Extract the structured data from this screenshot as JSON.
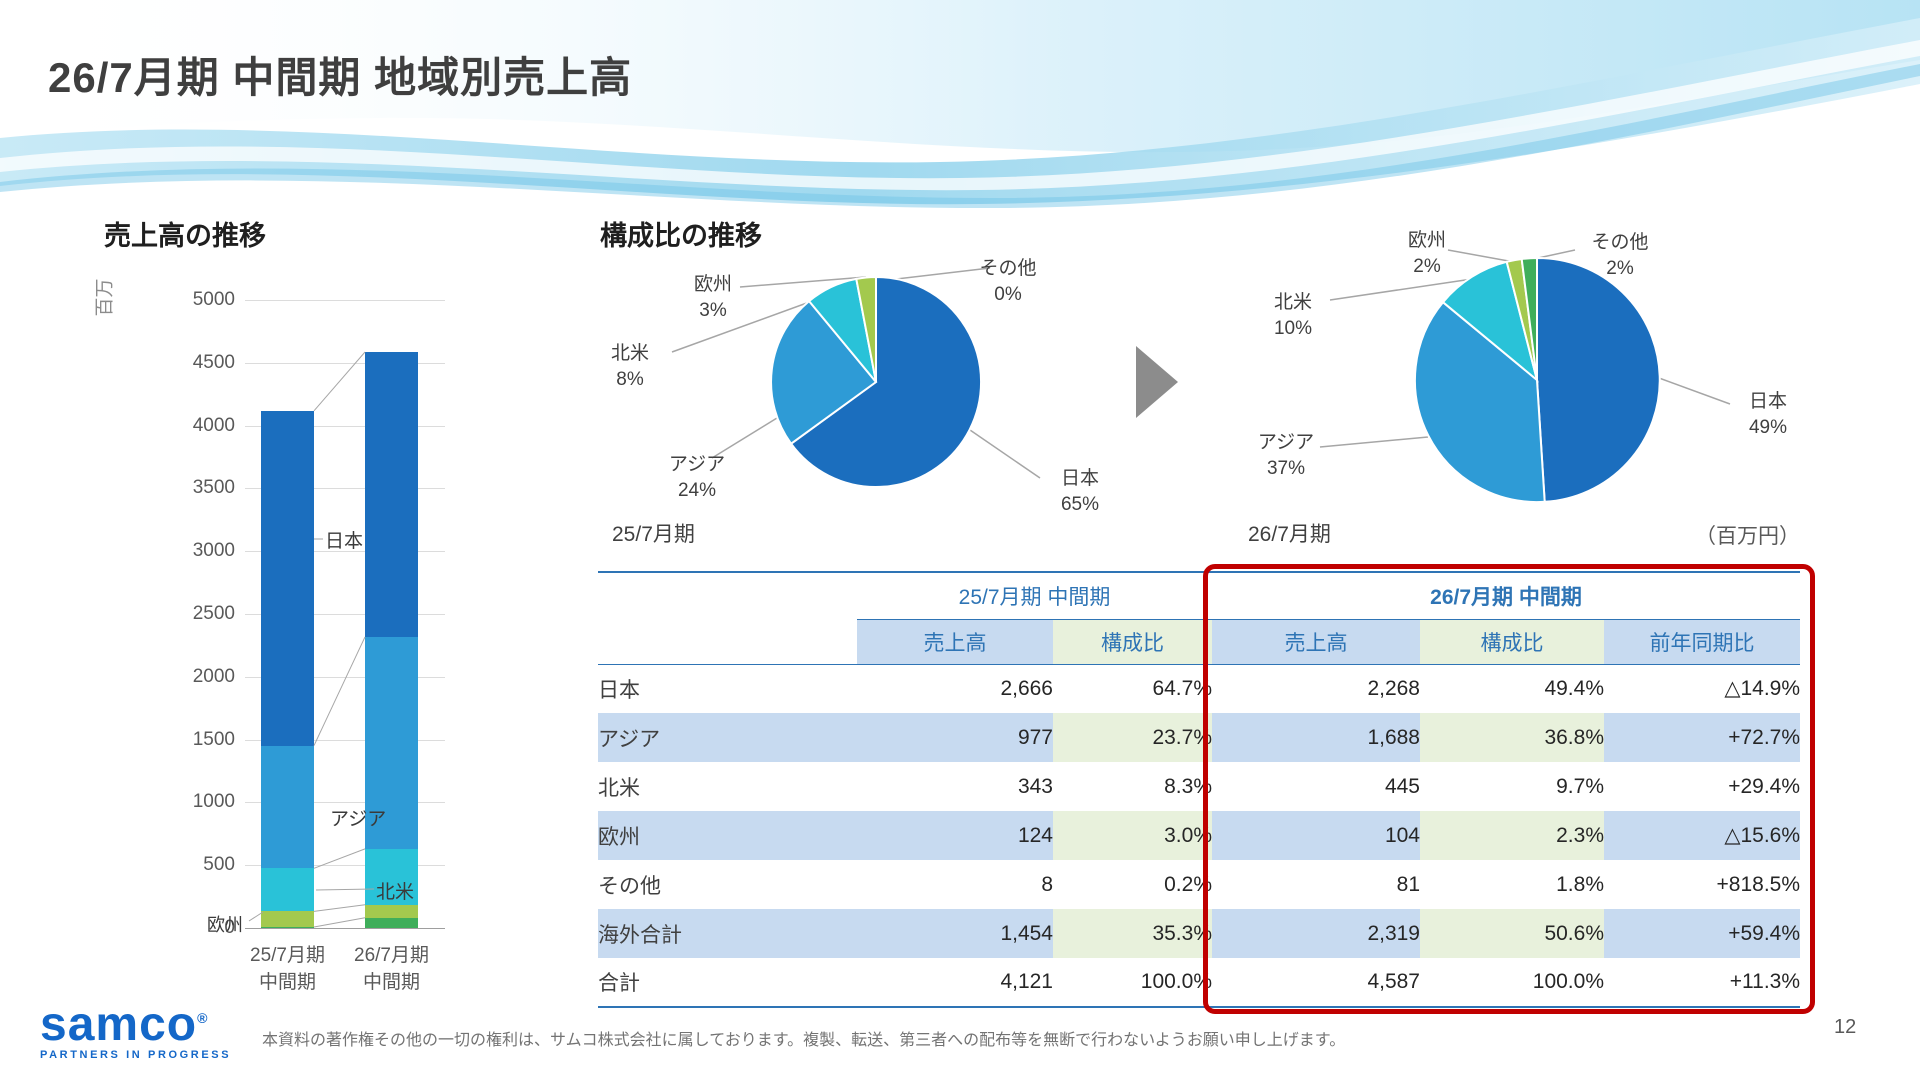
{
  "slide": {
    "title": "26/7月期 中間期 地域別売上高",
    "page_number": "12",
    "footer": "本資料の著作権その他の一切の権利は、サムコ株式会社に属しております。複製、転送、第三者への配布等を無断で行わないようお願い申し上げます。"
  },
  "logo": {
    "name": "samco",
    "reg": "®",
    "tagline": "PARTNERS IN PROGRESS"
  },
  "sections": {
    "pie_title": "構成比の推移",
    "unit_note": "（百万円）"
  },
  "colors": {
    "japan": "#1B6EBE",
    "asia": "#2E9BD6",
    "namerica": "#29C2D8",
    "europe": "#A3C94E",
    "other": "#3FAE5A",
    "header_blue": "#2E74B5",
    "stripe_blue": "#C7DAF0",
    "stripe_green": "#E8F1DC",
    "highlight_red": "#C00000"
  },
  "chart_data": [
    {
      "id": "sales_bar",
      "type": "bar",
      "stacked": true,
      "title": "売上高の推移",
      "ylabel": "百万",
      "ylim": [
        0,
        5000
      ],
      "ytick_step": 500,
      "categories": [
        "25/7月期 中間期",
        "26/7月期 中間期"
      ],
      "categories_lines": [
        [
          "25/7月期",
          "中間期"
        ],
        [
          "26/7月期",
          "中間期"
        ]
      ],
      "series": [
        {
          "name": "その他",
          "key": "other",
          "values": [
            8,
            81
          ]
        },
        {
          "name": "欧州",
          "key": "europe",
          "values": [
            124,
            104
          ]
        },
        {
          "name": "北米",
          "key": "namerica",
          "values": [
            343,
            445
          ]
        },
        {
          "name": "アジア",
          "key": "asia",
          "values": [
            977,
            1688
          ]
        },
        {
          "name": "日本",
          "key": "japan",
          "values": [
            2666,
            2268
          ]
        }
      ]
    },
    {
      "id": "pie_25",
      "type": "pie",
      "caption": "25/7月期",
      "slices": [
        {
          "name": "日本",
          "key": "japan",
          "pct": 65,
          "pct_label": "65%"
        },
        {
          "name": "アジア",
          "key": "asia",
          "pct": 24,
          "pct_label": "24%"
        },
        {
          "name": "北米",
          "key": "namerica",
          "pct": 8,
          "pct_label": "8%"
        },
        {
          "name": "欧州",
          "key": "europe",
          "pct": 3,
          "pct_label": "3%"
        },
        {
          "name": "その他",
          "key": "other",
          "pct": 0,
          "pct_label": "0%"
        }
      ]
    },
    {
      "id": "pie_26",
      "type": "pie",
      "caption": "26/7月期",
      "slices": [
        {
          "name": "日本",
          "key": "japan",
          "pct": 49,
          "pct_label": "49%"
        },
        {
          "name": "アジア",
          "key": "asia",
          "pct": 37,
          "pct_label": "37%"
        },
        {
          "name": "北米",
          "key": "namerica",
          "pct": 10,
          "pct_label": "10%"
        },
        {
          "name": "欧州",
          "key": "europe",
          "pct": 2,
          "pct_label": "2%"
        },
        {
          "name": "その他",
          "key": "other",
          "pct": 2,
          "pct_label": "2%"
        }
      ]
    },
    {
      "id": "region_table",
      "type": "table",
      "col_groups": [
        {
          "label": "",
          "span": 1
        },
        {
          "label": "25/7月期 中間期",
          "span": 2
        },
        {
          "label": "26/7月期 中間期",
          "span": 3
        }
      ],
      "columns": [
        "",
        "売上高",
        "構成比",
        "売上高",
        "構成比",
        "前年同期比"
      ],
      "rows": [
        {
          "label": "日本",
          "cells": [
            "2,666",
            "64.7%",
            "2,268",
            "49.4%",
            "△14.9%"
          ]
        },
        {
          "label": "アジア",
          "cells": [
            "977",
            "23.7%",
            "1,688",
            "36.8%",
            "+72.7%"
          ]
        },
        {
          "label": "北米",
          "cells": [
            "343",
            "8.3%",
            "445",
            "9.7%",
            "+29.4%"
          ]
        },
        {
          "label": "欧州",
          "cells": [
            "124",
            "3.0%",
            "104",
            "2.3%",
            "△15.6%"
          ]
        },
        {
          "label": "その他",
          "cells": [
            "8",
            "0.2%",
            "81",
            "1.8%",
            "+818.5%"
          ]
        },
        {
          "label": "海外合計",
          "cells": [
            "1,454",
            "35.3%",
            "2,319",
            "50.6%",
            "+59.4%"
          ]
        },
        {
          "label": "合計",
          "cells": [
            "4,121",
            "100.0%",
            "4,587",
            "100.0%",
            "+11.3%"
          ]
        }
      ]
    }
  ]
}
